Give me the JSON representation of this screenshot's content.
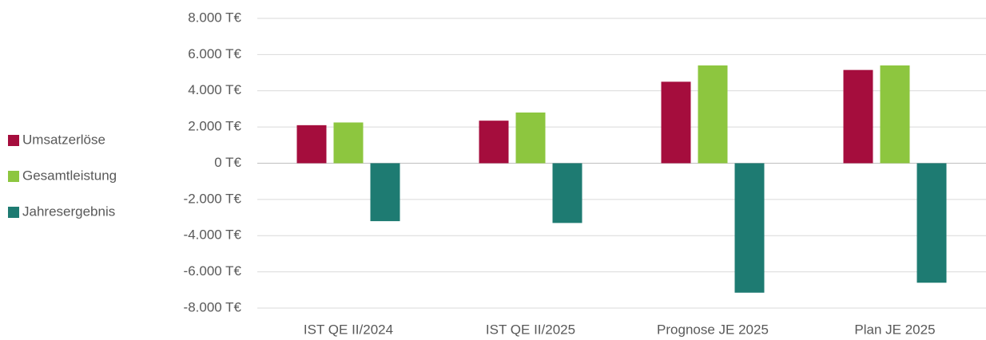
{
  "chart_data": {
    "type": "bar",
    "categories": [
      "IST QE II/2024",
      "IST QE II/2025",
      "Prognose JE 2025",
      "Plan JE 2025"
    ],
    "series": [
      {
        "name": "Umsatzerlöse",
        "color": "#a50d3d",
        "values": [
          2100,
          2350,
          4500,
          5150
        ]
      },
      {
        "name": "Gesamtleistung",
        "color": "#8dc63f",
        "values": [
          2250,
          2800,
          5400,
          5400
        ]
      },
      {
        "name": "Jahresergebnis",
        "color": "#1e7b72",
        "values": [
          -3200,
          -3300,
          -7150,
          -6600
        ]
      }
    ],
    "ylim": [
      -8000,
      8000
    ],
    "yticks": [
      {
        "value": -8000,
        "label": "-8.000 T€"
      },
      {
        "value": -6000,
        "label": "-6.000 T€"
      },
      {
        "value": -4000,
        "label": "-4.000 T€"
      },
      {
        "value": -2000,
        "label": "-2.000 T€"
      },
      {
        "value": 0,
        "label": "0 T€"
      },
      {
        "value": 2000,
        "label": "2.000 T€"
      },
      {
        "value": 4000,
        "label": "4.000 T€"
      },
      {
        "value": 6000,
        "label": "6.000 T€"
      },
      {
        "value": 8000,
        "label": "8.000 T€"
      }
    ],
    "grid": true,
    "legend": "left"
  }
}
